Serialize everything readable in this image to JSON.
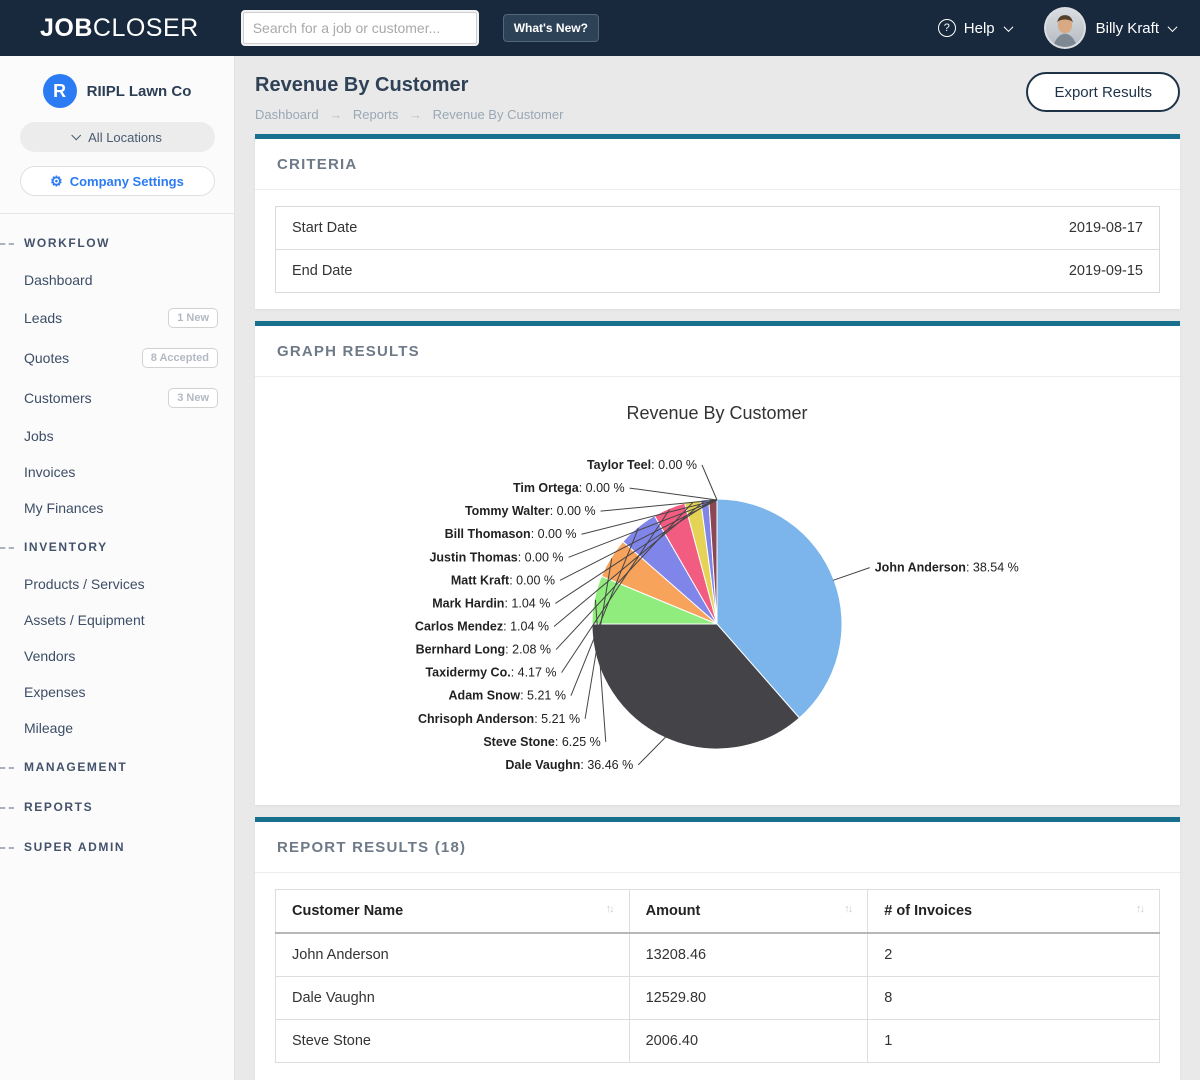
{
  "colors": {
    "accent_teal": "#196f8e",
    "brand_blue": "#2b7bf5",
    "header_navy": "#18293d"
  },
  "header": {
    "logo_bold": "JOB",
    "logo_light": "CLOSER",
    "search_placeholder": "Search for a job or customer...",
    "whats_new_label": "What's New?",
    "help_label": "Help",
    "help_icon": "?",
    "user_name": "Billy Kraft"
  },
  "sidebar": {
    "company_initial": "R",
    "company_name": "RIIPL Lawn Co",
    "locations_label": "All Locations",
    "settings_label": "Company Settings",
    "settings_icon": "⚙",
    "sections": [
      {
        "label": "WORKFLOW",
        "items": [
          {
            "label": "Dashboard"
          },
          {
            "label": "Leads",
            "badge": "1 New"
          },
          {
            "label": "Quotes",
            "badge": "8 Accepted"
          },
          {
            "label": "Customers",
            "badge": "3 New"
          },
          {
            "label": "Jobs"
          },
          {
            "label": "Invoices"
          },
          {
            "label": "My Finances"
          }
        ]
      },
      {
        "label": "INVENTORY",
        "items": [
          {
            "label": "Products / Services"
          },
          {
            "label": "Assets / Equipment"
          },
          {
            "label": "Vendors"
          },
          {
            "label": "Expenses"
          },
          {
            "label": "Mileage"
          }
        ]
      },
      {
        "label": "MANAGEMENT",
        "items": []
      },
      {
        "label": "REPORTS",
        "items": []
      },
      {
        "label": "SUPER ADMIN",
        "items": []
      }
    ]
  },
  "page": {
    "title": "Revenue By Customer",
    "breadcrumb": [
      "Dashboard",
      "Reports",
      "Revenue By Customer"
    ],
    "export_label": "Export Results"
  },
  "criteria": {
    "heading": "CRITERIA",
    "rows": [
      {
        "label": "Start Date",
        "value": "2019-08-17"
      },
      {
        "label": "End Date",
        "value": "2019-09-15"
      }
    ]
  },
  "graph": {
    "heading": "GRAPH RESULTS"
  },
  "chart_data": {
    "type": "pie",
    "title": "Revenue By Customer",
    "unit": "%",
    "legend_position": "none",
    "categories": [
      "John Anderson",
      "Dale Vaughn",
      "Steve Stone",
      "Chrisoph Anderson",
      "Adam Snow",
      "Taxidermy Co.",
      "Bernhard Long",
      "Carlos Mendez",
      "Mark Hardin",
      "Matt Kraft",
      "Justin Thomas",
      "Bill Thomason",
      "Tommy Walter",
      "Tim Ortega",
      "Taylor Teel"
    ],
    "values": [
      38.54,
      36.46,
      6.25,
      5.21,
      5.21,
      4.17,
      2.08,
      1.04,
      1.04,
      0.0,
      0.0,
      0.0,
      0.0,
      0.0,
      0.0
    ],
    "slices": [
      {
        "name": "John Anderson",
        "pct": "38.54",
        "value": 38.54,
        "color": "#7cb5ec"
      },
      {
        "name": "Dale Vaughn",
        "pct": "36.46",
        "value": 36.46,
        "color": "#434348"
      },
      {
        "name": "Steve Stone",
        "pct": "6.25",
        "value": 6.25,
        "color": "#90ed7d"
      },
      {
        "name": "Chrisoph Anderson",
        "pct": "5.21",
        "value": 5.21,
        "color": "#f7a35c"
      },
      {
        "name": "Adam Snow",
        "pct": "5.21",
        "value": 5.21,
        "color": "#8085e9"
      },
      {
        "name": "Taxidermy Co.",
        "pct": "4.17",
        "value": 4.17,
        "color": "#f15c80"
      },
      {
        "name": "Bernhard Long",
        "pct": "2.08",
        "value": 2.08,
        "color": "#e4d354"
      },
      {
        "name": "Carlos Mendez",
        "pct": "1.04",
        "value": 1.04,
        "color": "#8085e8"
      },
      {
        "name": "Mark Hardin",
        "pct": "1.04",
        "value": 1.04,
        "color": "#8d4653"
      },
      {
        "name": "Matt Kraft",
        "pct": "0.00",
        "value": 0,
        "color": "#91e8e1"
      },
      {
        "name": "Justin Thomas",
        "pct": "0.00",
        "value": 0,
        "color": "#7cb5ec"
      },
      {
        "name": "Bill Thomason",
        "pct": "0.00",
        "value": 0,
        "color": "#434348"
      },
      {
        "name": "Tommy Walter",
        "pct": "0.00",
        "value": 0,
        "color": "#90ed7d"
      },
      {
        "name": "Tim Ortega",
        "pct": "0.00",
        "value": 0,
        "color": "#f7a35c"
      },
      {
        "name": "Taylor Teel",
        "pct": "0.00",
        "value": 0,
        "color": "#8085e9"
      }
    ]
  },
  "report": {
    "heading": "REPORT RESULTS (18)",
    "sort_icon": "↑↓",
    "columns": [
      "Customer Name",
      "Amount",
      "# of Invoices"
    ],
    "rows": [
      [
        "John Anderson",
        "13208.46",
        "2"
      ],
      [
        "Dale Vaughn",
        "12529.80",
        "8"
      ],
      [
        "Steve Stone",
        "2006.40",
        "1"
      ]
    ]
  }
}
